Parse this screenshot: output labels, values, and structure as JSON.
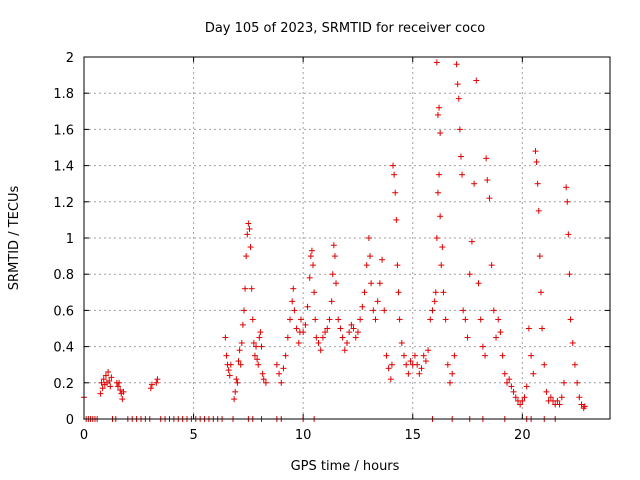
{
  "chart_data": {
    "type": "scatter",
    "title": "Day 105 of 2023, SRMTID for receiver coco",
    "xlabel": "GPS time / hours",
    "ylabel": "SRMTID / TECUs",
    "xlim": [
      0,
      24
    ],
    "ylim": [
      0,
      2
    ],
    "x_ticks": [
      0,
      5,
      10,
      15,
      20
    ],
    "x_tick_labels": [
      "0",
      "5",
      "10",
      "15",
      "20"
    ],
    "y_ticks": [
      0,
      0.2,
      0.4,
      0.6,
      0.8,
      1,
      1.2,
      1.4,
      1.6,
      1.8,
      2
    ],
    "y_tick_labels": [
      "0",
      "0.2",
      "0.4",
      "0.6",
      "0.8",
      "1",
      "1.2",
      "1.4",
      "1.6",
      "1.8",
      "2"
    ],
    "grid": true,
    "marker": "+",
    "color": "#e00000",
    "series": [
      {
        "name": "SRMTID",
        "points": [
          [
            0.0,
            0.12
          ],
          [
            0.1,
            0.0
          ],
          [
            0.2,
            0.0
          ],
          [
            0.3,
            0.0
          ],
          [
            0.4,
            0.0
          ],
          [
            0.5,
            0.0
          ],
          [
            0.6,
            0.0
          ],
          [
            0.75,
            0.14
          ],
          [
            0.8,
            0.2
          ],
          [
            0.85,
            0.17
          ],
          [
            0.9,
            0.22
          ],
          [
            0.95,
            0.19
          ],
          [
            1.0,
            0.24
          ],
          [
            1.05,
            0.2
          ],
          [
            1.1,
            0.26
          ],
          [
            1.15,
            0.21
          ],
          [
            1.2,
            0.18
          ],
          [
            1.25,
            0.23
          ],
          [
            1.3,
            0.0
          ],
          [
            1.45,
            0.0
          ],
          [
            1.5,
            0.2
          ],
          [
            1.55,
            0.18
          ],
          [
            1.6,
            0.2
          ],
          [
            1.65,
            0.16
          ],
          [
            1.7,
            0.14
          ],
          [
            1.75,
            0.11
          ],
          [
            1.8,
            0.15
          ],
          [
            2.0,
            0.0
          ],
          [
            2.2,
            0.0
          ],
          [
            2.4,
            0.0
          ],
          [
            2.6,
            0.0
          ],
          [
            2.8,
            0.0
          ],
          [
            3.0,
            0.0
          ],
          [
            3.05,
            0.17
          ],
          [
            3.1,
            0.19
          ],
          [
            3.3,
            0.2
          ],
          [
            3.35,
            0.22
          ],
          [
            3.5,
            0.0
          ],
          [
            3.7,
            0.0
          ],
          [
            3.9,
            0.0
          ],
          [
            4.1,
            0.0
          ],
          [
            4.3,
            0.0
          ],
          [
            4.5,
            0.0
          ],
          [
            4.7,
            0.0
          ],
          [
            4.9,
            0.0
          ],
          [
            5.1,
            0.0
          ],
          [
            5.3,
            0.0
          ],
          [
            5.5,
            0.0
          ],
          [
            5.7,
            0.0
          ],
          [
            5.9,
            0.0
          ],
          [
            6.1,
            0.0
          ],
          [
            6.3,
            0.0
          ],
          [
            6.45,
            0.45
          ],
          [
            6.5,
            0.35
          ],
          [
            6.55,
            0.3
          ],
          [
            6.6,
            0.27
          ],
          [
            6.65,
            0.24
          ],
          [
            6.7,
            0.3
          ],
          [
            6.8,
            0.0
          ],
          [
            6.85,
            0.11
          ],
          [
            6.9,
            0.15
          ],
          [
            6.95,
            0.22
          ],
          [
            7.0,
            0.2
          ],
          [
            7.05,
            0.32
          ],
          [
            7.1,
            0.38
          ],
          [
            7.15,
            0.3
          ],
          [
            7.2,
            0.42
          ],
          [
            7.25,
            0.52
          ],
          [
            7.3,
            0.6
          ],
          [
            7.35,
            0.72
          ],
          [
            7.4,
            0.9
          ],
          [
            7.45,
            1.02
          ],
          [
            7.5,
            1.08
          ],
          [
            7.55,
            1.05
          ],
          [
            7.6,
            0.95
          ],
          [
            7.65,
            0.72
          ],
          [
            7.7,
            0.55
          ],
          [
            7.75,
            0.42
          ],
          [
            7.8,
            0.35
          ],
          [
            7.85,
            0.4
          ],
          [
            7.9,
            0.33
          ],
          [
            7.95,
            0.3
          ],
          [
            8.0,
            0.45
          ],
          [
            8.05,
            0.48
          ],
          [
            8.1,
            0.4
          ],
          [
            8.15,
            0.25
          ],
          [
            8.2,
            0.22
          ],
          [
            8.3,
            0.2
          ],
          [
            7.5,
            0.0
          ],
          [
            7.7,
            0.0
          ],
          [
            8.1,
            0.0
          ],
          [
            8.8,
            0.3
          ],
          [
            8.9,
            0.25
          ],
          [
            9.0,
            0.2
          ],
          [
            9.1,
            0.28
          ],
          [
            9.2,
            0.35
          ],
          [
            9.3,
            0.45
          ],
          [
            9.4,
            0.55
          ],
          [
            9.5,
            0.65
          ],
          [
            9.55,
            0.72
          ],
          [
            9.6,
            0.6
          ],
          [
            9.7,
            0.5
          ],
          [
            9.8,
            0.42
          ],
          [
            9.85,
            0.48
          ],
          [
            9.9,
            0.55
          ],
          [
            10.0,
            0.48
          ],
          [
            10.1,
            0.52
          ],
          [
            10.2,
            0.62
          ],
          [
            10.3,
            0.78
          ],
          [
            10.35,
            0.9
          ],
          [
            10.4,
            0.93
          ],
          [
            10.45,
            0.85
          ],
          [
            10.5,
            0.7
          ],
          [
            10.55,
            0.55
          ],
          [
            10.6,
            0.45
          ],
          [
            10.7,
            0.42
          ],
          [
            10.8,
            0.38
          ],
          [
            10.9,
            0.45
          ],
          [
            11.0,
            0.48
          ],
          [
            11.1,
            0.5
          ],
          [
            11.2,
            0.55
          ],
          [
            11.3,
            0.65
          ],
          [
            11.35,
            0.8
          ],
          [
            11.4,
            0.96
          ],
          [
            11.45,
            0.9
          ],
          [
            11.5,
            0.75
          ],
          [
            11.6,
            0.55
          ],
          [
            11.7,
            0.5
          ],
          [
            11.8,
            0.45
          ],
          [
            11.9,
            0.38
          ],
          [
            12.0,
            0.42
          ],
          [
            12.1,
            0.48
          ],
          [
            12.2,
            0.52
          ],
          [
            12.3,
            0.5
          ],
          [
            12.4,
            0.45
          ],
          [
            12.5,
            0.48
          ],
          [
            12.6,
            0.55
          ],
          [
            12.7,
            0.62
          ],
          [
            12.8,
            0.7
          ],
          [
            12.9,
            0.85
          ],
          [
            13.0,
            1.0
          ],
          [
            13.05,
            0.9
          ],
          [
            13.1,
            0.75
          ],
          [
            13.2,
            0.6
          ],
          [
            13.3,
            0.55
          ],
          [
            13.4,
            0.65
          ],
          [
            13.5,
            0.75
          ],
          [
            13.6,
            0.88
          ],
          [
            13.7,
            0.6
          ],
          [
            13.8,
            0.35
          ],
          [
            13.9,
            0.28
          ],
          [
            14.0,
            0.22
          ],
          [
            14.05,
            0.3
          ],
          [
            8.8,
            0.0
          ],
          [
            9.0,
            0.0
          ],
          [
            10.0,
            0.0
          ],
          [
            10.5,
            0.0
          ],
          [
            14.1,
            1.4
          ],
          [
            14.15,
            1.35
          ],
          [
            14.2,
            1.25
          ],
          [
            14.25,
            1.1
          ],
          [
            14.3,
            0.85
          ],
          [
            14.35,
            0.7
          ],
          [
            14.4,
            0.55
          ],
          [
            14.5,
            0.42
          ],
          [
            14.6,
            0.35
          ],
          [
            14.7,
            0.3
          ],
          [
            14.8,
            0.25
          ],
          [
            14.9,
            0.32
          ],
          [
            15.0,
            0.3
          ],
          [
            15.1,
            0.35
          ],
          [
            15.2,
            0.3
          ],
          [
            15.3,
            0.25
          ],
          [
            15.4,
            0.28
          ],
          [
            15.5,
            0.35
          ],
          [
            15.6,
            0.32
          ],
          [
            15.7,
            0.38
          ],
          [
            15.8,
            0.55
          ],
          [
            15.9,
            0.6
          ],
          [
            16.0,
            0.65
          ],
          [
            16.05,
            0.7
          ],
          [
            16.1,
            1.0
          ],
          [
            16.15,
            1.25
          ],
          [
            16.2,
            1.35
          ],
          [
            16.25,
            1.12
          ],
          [
            16.3,
            0.85
          ],
          [
            16.35,
            0.95
          ],
          [
            16.4,
            0.7
          ],
          [
            16.5,
            0.55
          ],
          [
            16.6,
            0.3
          ],
          [
            16.7,
            0.2
          ],
          [
            16.8,
            0.25
          ],
          [
            16.9,
            0.35
          ],
          [
            16.1,
            1.97
          ],
          [
            16.2,
            1.72
          ],
          [
            16.25,
            1.58
          ],
          [
            16.15,
            1.68
          ],
          [
            17.0,
            1.96
          ],
          [
            17.05,
            1.85
          ],
          [
            17.1,
            1.77
          ],
          [
            17.15,
            1.6
          ],
          [
            17.2,
            1.45
          ],
          [
            17.25,
            1.35
          ],
          [
            17.3,
            0.6
          ],
          [
            17.4,
            0.55
          ],
          [
            17.5,
            0.45
          ],
          [
            17.6,
            0.8
          ],
          [
            17.7,
            0.98
          ],
          [
            17.8,
            1.3
          ],
          [
            17.9,
            1.87
          ],
          [
            18.0,
            0.75
          ],
          [
            18.1,
            0.55
          ],
          [
            18.2,
            0.4
          ],
          [
            18.3,
            0.35
          ],
          [
            18.35,
            1.44
          ],
          [
            18.4,
            1.32
          ],
          [
            18.5,
            1.22
          ],
          [
            18.6,
            0.85
          ],
          [
            18.7,
            0.6
          ],
          [
            18.8,
            0.45
          ],
          [
            18.9,
            0.55
          ],
          [
            19.0,
            0.48
          ],
          [
            19.1,
            0.35
          ],
          [
            19.2,
            0.25
          ],
          [
            19.3,
            0.2
          ],
          [
            19.4,
            0.22
          ],
          [
            19.5,
            0.18
          ],
          [
            19.6,
            0.15
          ],
          [
            19.7,
            0.12
          ],
          [
            19.8,
            0.1
          ],
          [
            19.9,
            0.08
          ],
          [
            20.0,
            0.1
          ],
          [
            20.1,
            0.12
          ],
          [
            20.2,
            0.18
          ],
          [
            15.9,
            0.0
          ],
          [
            16.8,
            0.0
          ],
          [
            17.6,
            0.0
          ],
          [
            18.2,
            0.0
          ],
          [
            19.2,
            0.0
          ],
          [
            20.3,
            0.5
          ],
          [
            20.4,
            0.35
          ],
          [
            20.5,
            0.25
          ],
          [
            20.6,
            1.48
          ],
          [
            20.65,
            1.42
          ],
          [
            20.7,
            1.3
          ],
          [
            20.75,
            1.15
          ],
          [
            20.8,
            0.9
          ],
          [
            20.85,
            0.7
          ],
          [
            20.9,
            0.5
          ],
          [
            21.0,
            0.3
          ],
          [
            21.1,
            0.15
          ],
          [
            21.2,
            0.1
          ],
          [
            21.3,
            0.12
          ],
          [
            21.4,
            0.1
          ],
          [
            21.5,
            0.08
          ],
          [
            21.6,
            0.1
          ],
          [
            21.7,
            0.08
          ],
          [
            21.8,
            0.12
          ],
          [
            21.9,
            0.2
          ],
          [
            22.0,
            1.28
          ],
          [
            22.05,
            1.2
          ],
          [
            22.1,
            1.02
          ],
          [
            22.15,
            0.8
          ],
          [
            22.2,
            0.55
          ],
          [
            22.3,
            0.42
          ],
          [
            22.4,
            0.3
          ],
          [
            22.5,
            0.2
          ],
          [
            22.6,
            0.12
          ],
          [
            22.7,
            0.08
          ],
          [
            22.8,
            0.06
          ],
          [
            22.85,
            0.07
          ],
          [
            20.2,
            0.0
          ],
          [
            20.4,
            0.0
          ],
          [
            21.0,
            0.0
          ],
          [
            21.5,
            0.0
          ]
        ]
      }
    ]
  }
}
